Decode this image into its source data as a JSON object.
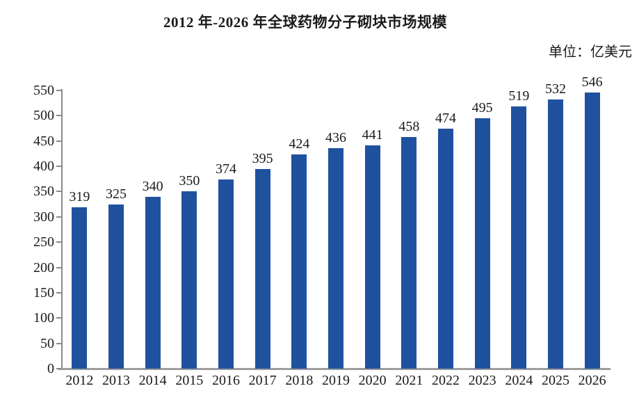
{
  "chart_data": {
    "type": "bar",
    "title": "2012 年-2026 年全球药物分子砌块市场规模",
    "unit_label": "单位：亿美元",
    "categories": [
      "2012",
      "2013",
      "2014",
      "2015",
      "2016",
      "2017",
      "2018",
      "2019",
      "2020",
      "2021",
      "2022",
      "2023",
      "2024",
      "2025",
      "2026"
    ],
    "values": [
      319,
      325,
      340,
      350,
      374,
      395,
      424,
      436,
      441,
      458,
      474,
      495,
      519,
      532,
      546
    ],
    "xlabel": "",
    "ylabel": "",
    "ylim": [
      0,
      550
    ],
    "yticks": [
      0,
      50,
      100,
      150,
      200,
      250,
      300,
      350,
      400,
      450,
      500,
      550
    ],
    "grid": "off",
    "legend": "none",
    "bar_color": "#1F519F",
    "axis_color": "#9D9D9D",
    "text_color": "#1B1B1B"
  }
}
